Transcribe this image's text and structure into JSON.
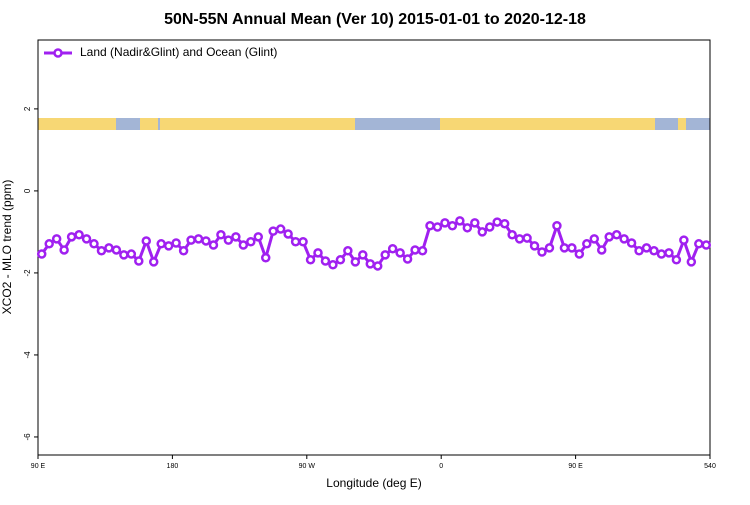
{
  "chart_data": {
    "type": "line",
    "title": "50N-55N Annual Mean (Ver 10)   2015-01-01 to 2020-12-18",
    "x_label": "Longitude (deg E)",
    "y_label": "XCO2 - MLO trend (ppm)",
    "x": [
      92.5,
      97.5,
      102.5,
      107.5,
      112.5,
      117.5,
      122.5,
      127.5,
      132.5,
      137.5,
      142.5,
      147.5,
      152.5,
      157.5,
      162.5,
      167.5,
      172.5,
      177.5,
      182.5,
      187.5,
      192.5,
      197.5,
      202.5,
      207.5,
      212.5,
      217.5,
      222.5,
      227.5,
      232.5,
      237.5,
      242.5,
      247.5,
      252.5,
      257.5,
      262.5,
      267.5,
      272.5,
      277.5,
      282.5,
      287.5,
      292.5,
      297.5,
      302.5,
      307.5,
      312.5,
      317.5,
      322.5,
      327.5,
      332.5,
      337.5,
      342.5,
      347.5,
      352.5,
      357.5,
      362.5,
      367.5,
      372.5,
      377.5,
      382.5,
      387.5,
      392.5,
      397.5,
      402.5,
      407.5,
      412.5,
      417.5,
      422.5,
      427.5,
      432.5,
      437.5,
      442.5,
      447.5,
      452.5,
      457.5,
      462.5,
      467.5,
      472.5,
      477.5,
      482.5,
      487.5,
      492.5,
      497.5,
      502.5,
      507.5,
      512.5,
      517.5,
      522.5,
      527.5,
      532.5,
      537.5
    ],
    "series": [
      {
        "name": "Land (Nadir&Glint) and Ocean (Glint)",
        "color": "#a020f0",
        "values": [
          -1.54,
          -1.29,
          -1.17,
          -1.44,
          -1.12,
          -1.07,
          -1.17,
          -1.29,
          -1.46,
          -1.39,
          -1.44,
          -1.56,
          -1.54,
          -1.71,
          -1.22,
          -1.73,
          -1.29,
          -1.34,
          -1.27,
          -1.46,
          -1.2,
          -1.17,
          -1.22,
          -1.32,
          -1.07,
          -1.2,
          -1.12,
          -1.32,
          -1.24,
          -1.12,
          -1.63,
          -0.98,
          -0.93,
          -1.05,
          -1.24,
          -1.24,
          -1.68,
          -1.51,
          -1.71,
          -1.8,
          -1.68,
          -1.46,
          -1.73,
          -1.56,
          -1.78,
          -1.83,
          -1.56,
          -1.41,
          -1.51,
          -1.66,
          -1.44,
          -1.46,
          -0.85,
          -0.88,
          -0.78,
          -0.85,
          -0.73,
          -0.9,
          -0.78,
          -1.0,
          -0.88,
          -0.76,
          -0.8,
          -1.07,
          -1.17,
          -1.15,
          -1.34,
          -1.49,
          -1.39,
          -0.85,
          -1.39,
          -1.39,
          -1.54,
          -1.29,
          -1.17,
          -1.44,
          -1.12,
          -1.07,
          -1.17,
          -1.27,
          -1.46,
          -1.39,
          -1.46,
          -1.54,
          -1.51,
          -1.68,
          -1.2,
          -1.73,
          -1.29,
          -1.32
        ]
      }
    ],
    "xlim": [
      90,
      540
    ],
    "xticks": [
      {
        "value": 90,
        "label": "90 E"
      },
      180,
      {
        "value": 270,
        "label": "90 W"
      },
      {
        "value": 360,
        "label": "0"
      },
      {
        "value": 450,
        "label": "90 E"
      },
      540
    ],
    "ylim": [
      -6.44,
      3.68
    ],
    "yticks": [
      -6,
      -4,
      -2,
      0,
      2
    ],
    "legend": "top-left"
  }
}
